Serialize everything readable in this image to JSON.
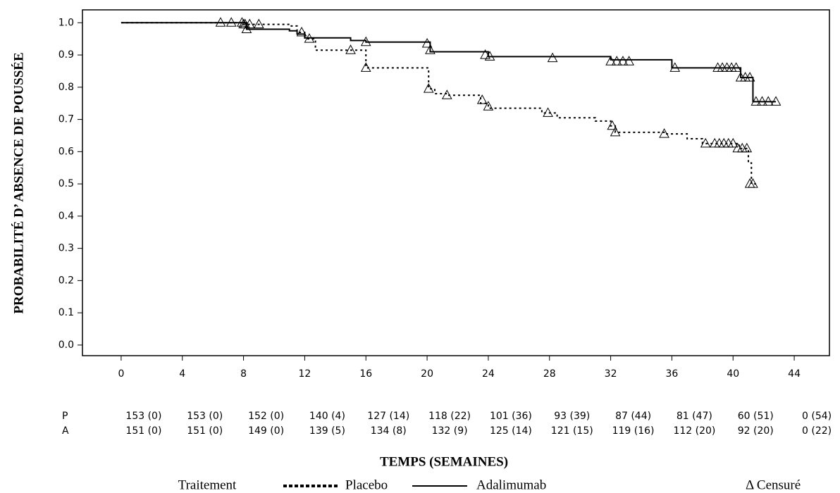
{
  "chart_data": {
    "type": "km",
    "ylabel": "PROBABILITÉ D’  ABSENCE DE POUSSÉE",
    "xlabel": "TEMPS (SEMAINES)",
    "xlim": [
      -2.53,
      46.3
    ],
    "ylim": [
      -0.033,
      1.04
    ],
    "xticks": [
      0,
      4,
      8,
      12,
      16,
      20,
      24,
      28,
      32,
      36,
      40,
      44
    ],
    "yticks": [
      {
        "value": 0,
        "label": "0.0"
      },
      0.1,
      0.2,
      0.3,
      0.4,
      0.5,
      0.6,
      0.7,
      0.8,
      0.9,
      {
        "value": 1,
        "label": "1.0"
      }
    ],
    "legend_title": "Traitement",
    "censor_label": "Δ Censuré",
    "series": [
      {
        "name": "Placebo",
        "color": "#000000",
        "dash": "dotted",
        "x": [
          0,
          8,
          11,
          11.5,
          12,
          12.7,
          16,
          20.1,
          20.5,
          21.3,
          23.5,
          24,
          27.5,
          28.5,
          31,
          32,
          32.3,
          35.5,
          37,
          38,
          40.4,
          41,
          41.2,
          41.5
        ],
        "values": [
          1.0,
          0.995,
          0.99,
          0.97,
          0.95,
          0.915,
          0.86,
          0.795,
          0.78,
          0.775,
          0.75,
          0.735,
          0.72,
          0.705,
          0.695,
          0.68,
          0.66,
          0.655,
          0.64,
          0.625,
          0.61,
          0.565,
          0.5,
          0.5
        ],
        "censored_x": [
          6.5,
          7.2,
          7.9,
          8.1,
          8.4,
          9.0,
          11.8,
          12.3,
          15,
          16,
          20.1,
          21.3,
          23.6,
          24,
          27.9,
          32.1,
          32.3,
          35.5,
          38.2,
          38.8,
          39.1,
          39.4,
          39.7,
          40,
          40.3,
          40.6,
          40.9,
          41.1,
          41.3
        ],
        "censored_y": [
          1.0,
          1.0,
          1.0,
          0.995,
          0.995,
          0.995,
          0.97,
          0.95,
          0.915,
          0.86,
          0.795,
          0.775,
          0.76,
          0.74,
          0.72,
          0.68,
          0.66,
          0.655,
          0.625,
          0.625,
          0.625,
          0.625,
          0.625,
          0.625,
          0.61,
          0.61,
          0.61,
          0.5,
          0.5
        ]
      },
      {
        "name": "Adalimumab",
        "color": "#000000",
        "dash": "solid",
        "x": [
          0,
          8.2,
          11,
          11.5,
          12,
          15,
          16,
          20.2,
          24,
          32,
          36,
          40.5,
          41.3,
          42.8
        ],
        "values": [
          1.0,
          0.98,
          0.975,
          0.965,
          0.953,
          0.945,
          0.94,
          0.91,
          0.895,
          0.885,
          0.86,
          0.83,
          0.755,
          0.755
        ],
        "censored_x": [
          8.0,
          8.2,
          16,
          20,
          20.2,
          23.8,
          24.1,
          28.2,
          32,
          32.4,
          32.8,
          33.2,
          36.2,
          39,
          39.3,
          39.6,
          39.9,
          40.2,
          40.5,
          40.8,
          41.1,
          41.5,
          41.9,
          42.3,
          42.8
        ],
        "censored_y": [
          0.995,
          0.98,
          0.94,
          0.935,
          0.915,
          0.9,
          0.895,
          0.89,
          0.88,
          0.88,
          0.88,
          0.88,
          0.86,
          0.86,
          0.86,
          0.86,
          0.86,
          0.86,
          0.83,
          0.83,
          0.83,
          0.755,
          0.755,
          0.755,
          0.755
        ]
      }
    ],
    "risk_table": [
      {
        "label": "P",
        "values": [
          "153 (0)",
          "153 (0)",
          "152 (0)",
          "140 (4)",
          "127 (14)",
          "118 (22)",
          "101 (36)",
          "93 (39)",
          "87 (44)",
          "81 (47)",
          "60 (51)",
          "0 (54)"
        ]
      },
      {
        "label": "A",
        "values": [
          "151 (0)",
          "151 (0)",
          "149 (0)",
          "139 (5)",
          "134 (8)",
          "132 (9)",
          "125 (14)",
          "121 (15)",
          "119 (16)",
          "112 (20)",
          "92 (20)",
          "0 (22)"
        ]
      }
    ]
  }
}
